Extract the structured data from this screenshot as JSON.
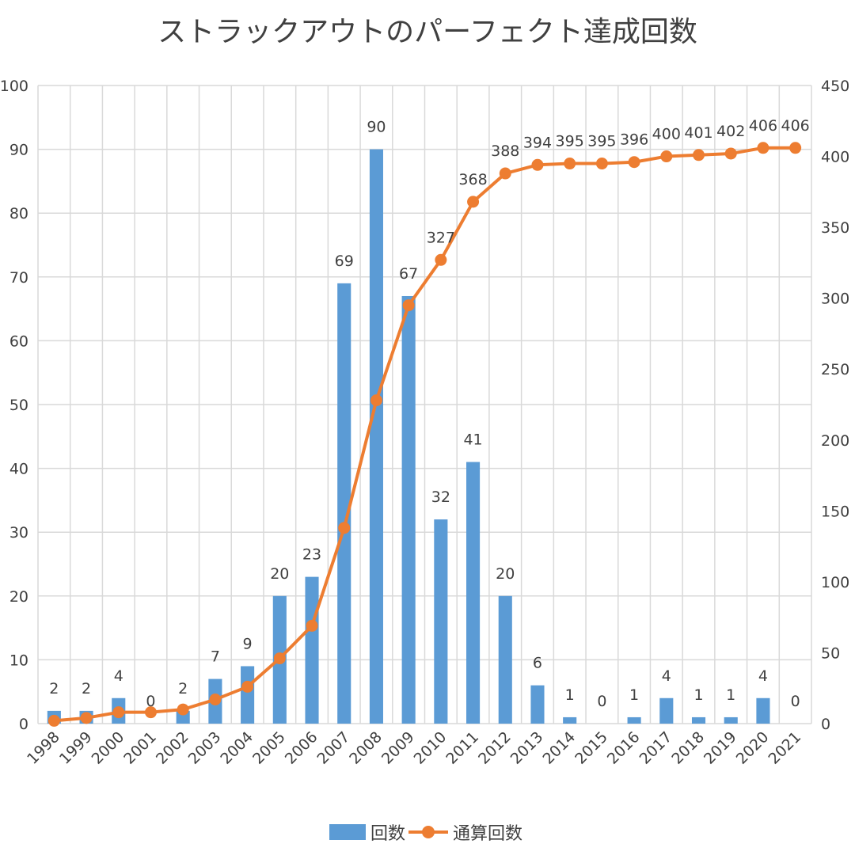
{
  "chart_data": {
    "type": "bar",
    "title": "ストラックアウトのパーフェクト達成回数",
    "categories": [
      "1998",
      "1999",
      "2000",
      "2001",
      "2002",
      "2003",
      "2004",
      "2005",
      "2006",
      "2007",
      "2008",
      "2009",
      "2010",
      "2011",
      "2012",
      "2013",
      "2014",
      "2015",
      "2016",
      "2017",
      "2018",
      "2019",
      "2020",
      "2021"
    ],
    "series": [
      {
        "name": "回数",
        "type": "bar",
        "axis": "left",
        "color": "#5B9BD5",
        "values": [
          2,
          2,
          4,
          0,
          2,
          7,
          9,
          20,
          23,
          69,
          90,
          67,
          32,
          41,
          20,
          6,
          1,
          0,
          1,
          4,
          1,
          1,
          4,
          0
        ]
      },
      {
        "name": "通算回数",
        "type": "line",
        "axis": "right",
        "color": "#ED7D31",
        "values": [
          2,
          4,
          8,
          8,
          10,
          17,
          26,
          46,
          69,
          138,
          228,
          295,
          327,
          368,
          388,
          394,
          395,
          395,
          396,
          400,
          401,
          402,
          406,
          406
        ],
        "labeled_from_index": 12
      }
    ],
    "y_left": {
      "min": 0,
      "max": 100,
      "step": 10
    },
    "y_right": {
      "min": 0,
      "max": 450,
      "step": 50
    },
    "grid": true,
    "legend_position": "bottom"
  }
}
